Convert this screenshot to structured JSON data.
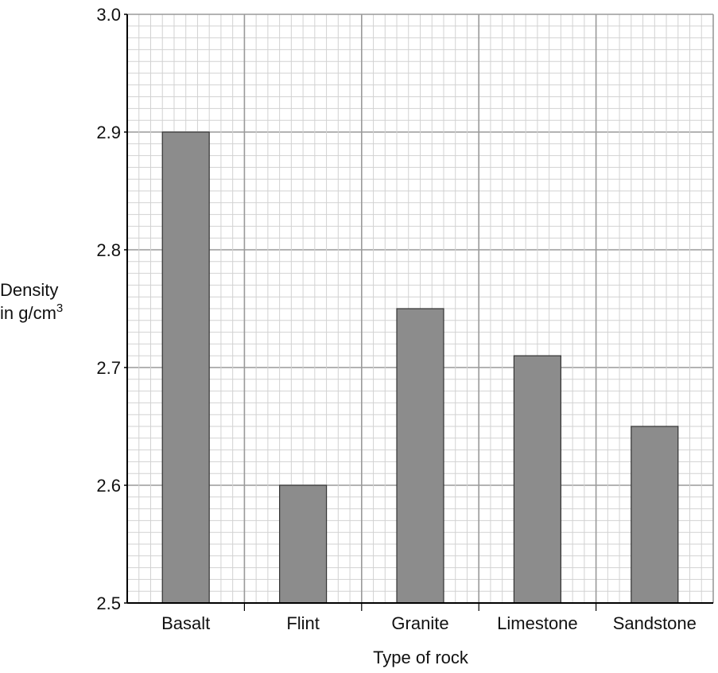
{
  "chart_data": {
    "type": "bar",
    "categories": [
      "Basalt",
      "Flint",
      "Granite",
      "Limestone",
      "Sandstone"
    ],
    "values": [
      2.9,
      2.6,
      2.75,
      2.71,
      2.65
    ],
    "title": "",
    "xlabel": "Type of rock",
    "ylabel_line1": "Density",
    "ylabel_line2": "in g/cm",
    "ylabel_superscript": "3",
    "ylim": [
      2.5,
      3.0
    ],
    "yticks": [
      "2.5",
      "2.6",
      "2.7",
      "2.8",
      "2.9",
      "3.0"
    ],
    "grid": true,
    "colors": {
      "bar_fill": "#8c8c8c",
      "bar_stroke": "#333333",
      "major_grid": "#9a9a9a",
      "minor_grid": "#d2d2d2",
      "axis": "#000000"
    }
  }
}
